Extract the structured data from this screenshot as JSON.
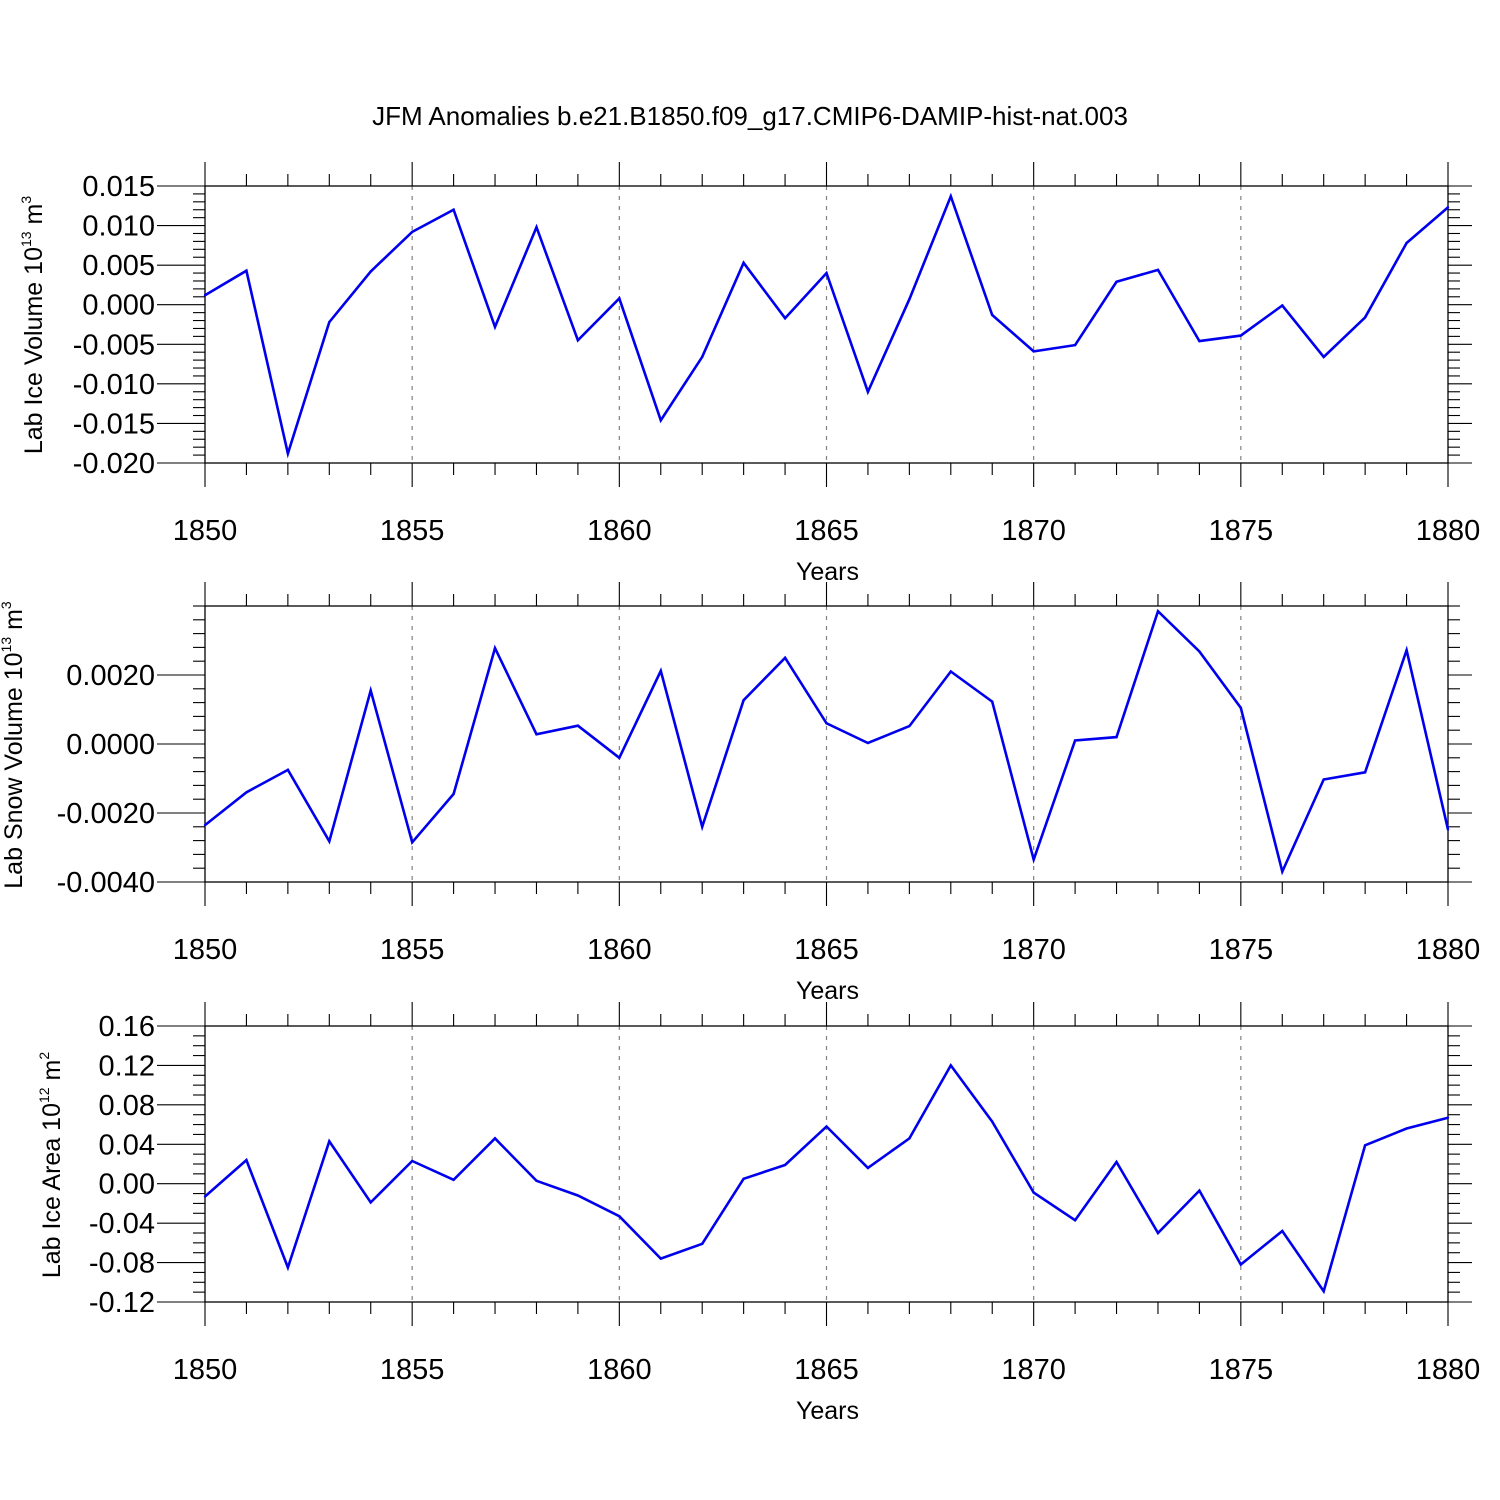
{
  "title": "JFM Anomalies b.e21.B1850.f09_g17.CMIP6-DAMIP-hist-nat.003",
  "colors": {
    "line": "#0000ee",
    "axis": "#000000",
    "grid": "#808080"
  },
  "chart_data": [
    {
      "type": "line",
      "xlabel": "Years",
      "ylabel": {
        "text": "Lab Ice Volume 10",
        "exponent": "13",
        "unit": "m",
        "unit_exponent": "3"
      },
      "xlim": [
        1850,
        1880
      ],
      "ylim": [
        -0.02,
        0.015
      ],
      "xticks": [
        1850,
        1855,
        1860,
        1865,
        1870,
        1875,
        1880
      ],
      "xtick_labels": [
        "1850",
        "1855",
        "1860",
        "1865",
        "1870",
        "1875",
        "1880"
      ],
      "yticks": [
        -0.02,
        -0.015,
        -0.01,
        -0.005,
        0.0,
        0.005,
        0.01,
        0.015
      ],
      "ytick_labels": [
        "-0.020",
        "-0.015",
        "-0.010",
        "-0.005",
        "0.000",
        "0.005",
        "0.010",
        "0.015"
      ],
      "x_grid": "dashed",
      "x": [
        1850,
        1851,
        1852,
        1853,
        1854,
        1855,
        1856,
        1857,
        1858,
        1859,
        1860,
        1861,
        1862,
        1863,
        1864,
        1865,
        1866,
        1867,
        1868,
        1869,
        1870,
        1871,
        1872,
        1873,
        1874,
        1875,
        1876,
        1877,
        1878,
        1879,
        1880
      ],
      "values": [
        0.0012,
        0.0043,
        -0.0188,
        -0.0022,
        0.0042,
        0.0092,
        0.012,
        -0.0028,
        0.0098,
        -0.0045,
        0.0008,
        -0.0146,
        -0.0066,
        0.0053,
        -0.0017,
        0.004,
        -0.011,
        0.0007,
        0.0137,
        -0.0013,
        -0.0059,
        -0.0051,
        0.0029,
        0.0044,
        -0.0046,
        -0.0039,
        -0.0001,
        -0.0066,
        -0.0016,
        0.0078,
        0.0123
      ]
    },
    {
      "type": "line",
      "xlabel": "Years",
      "ylabel": {
        "text": "Lab Snow Volume 10",
        "exponent": "13",
        "unit": "m",
        "unit_exponent": "3"
      },
      "xlim": [
        1850,
        1880
      ],
      "ylim": [
        -0.004,
        0.004
      ],
      "xticks": [
        1850,
        1855,
        1860,
        1865,
        1870,
        1875,
        1880
      ],
      "xtick_labels": [
        "1850",
        "1855",
        "1860",
        "1865",
        "1870",
        "1875",
        "1880"
      ],
      "yticks": [
        -0.004,
        -0.002,
        0.0,
        0.002
      ],
      "ytick_labels": [
        "-0.0040",
        "-0.0020",
        "0.0000",
        "0.0020"
      ],
      "x_grid": "dashed",
      "x": [
        1850,
        1851,
        1852,
        1853,
        1854,
        1855,
        1856,
        1857,
        1858,
        1859,
        1860,
        1861,
        1862,
        1863,
        1864,
        1865,
        1866,
        1867,
        1868,
        1869,
        1870,
        1871,
        1872,
        1873,
        1874,
        1875,
        1876,
        1877,
        1878,
        1879,
        1880
      ],
      "values": [
        -0.00235,
        -0.0014,
        -0.00075,
        -0.00282,
        0.00155,
        -0.00285,
        -0.00145,
        0.00278,
        0.00028,
        0.00053,
        -0.0004,
        0.00212,
        -0.0024,
        0.00127,
        0.0025,
        0.0006,
        3e-05,
        0.00052,
        0.0021,
        0.00123,
        -0.00335,
        0.0001,
        0.0002,
        0.00385,
        0.00268,
        0.00105,
        -0.0037,
        -0.00103,
        -0.00082,
        0.00272,
        -0.00248
      ]
    },
    {
      "type": "line",
      "xlabel": "Years",
      "ylabel": {
        "text": "Lab Ice Area 10",
        "exponent": "12",
        "unit": "m",
        "unit_exponent": "2"
      },
      "xlim": [
        1850,
        1880
      ],
      "ylim": [
        -0.12,
        0.16
      ],
      "xticks": [
        1850,
        1855,
        1860,
        1865,
        1870,
        1875,
        1880
      ],
      "xtick_labels": [
        "1850",
        "1855",
        "1860",
        "1865",
        "1870",
        "1875",
        "1880"
      ],
      "yticks": [
        -0.12,
        -0.08,
        -0.04,
        0.0,
        0.04,
        0.08,
        0.12,
        0.16
      ],
      "ytick_labels": [
        "-0.12",
        "-0.08",
        "-0.04",
        "0.00",
        "0.04",
        "0.08",
        "0.12",
        "0.16"
      ],
      "x_grid": "dashed",
      "x": [
        1850,
        1851,
        1852,
        1853,
        1854,
        1855,
        1856,
        1857,
        1858,
        1859,
        1860,
        1861,
        1862,
        1863,
        1864,
        1865,
        1866,
        1867,
        1868,
        1869,
        1870,
        1871,
        1872,
        1873,
        1874,
        1875,
        1876,
        1877,
        1878,
        1879,
        1880
      ],
      "values": [
        -0.013,
        0.024,
        -0.085,
        0.043,
        -0.019,
        0.023,
        0.004,
        0.046,
        0.003,
        -0.012,
        -0.033,
        -0.076,
        -0.061,
        0.005,
        0.019,
        0.058,
        0.016,
        0.046,
        0.12,
        0.063,
        -0.009,
        -0.037,
        0.022,
        -0.05,
        -0.007,
        -0.082,
        -0.048,
        -0.109,
        0.039,
        0.056,
        0.067
      ]
    }
  ]
}
